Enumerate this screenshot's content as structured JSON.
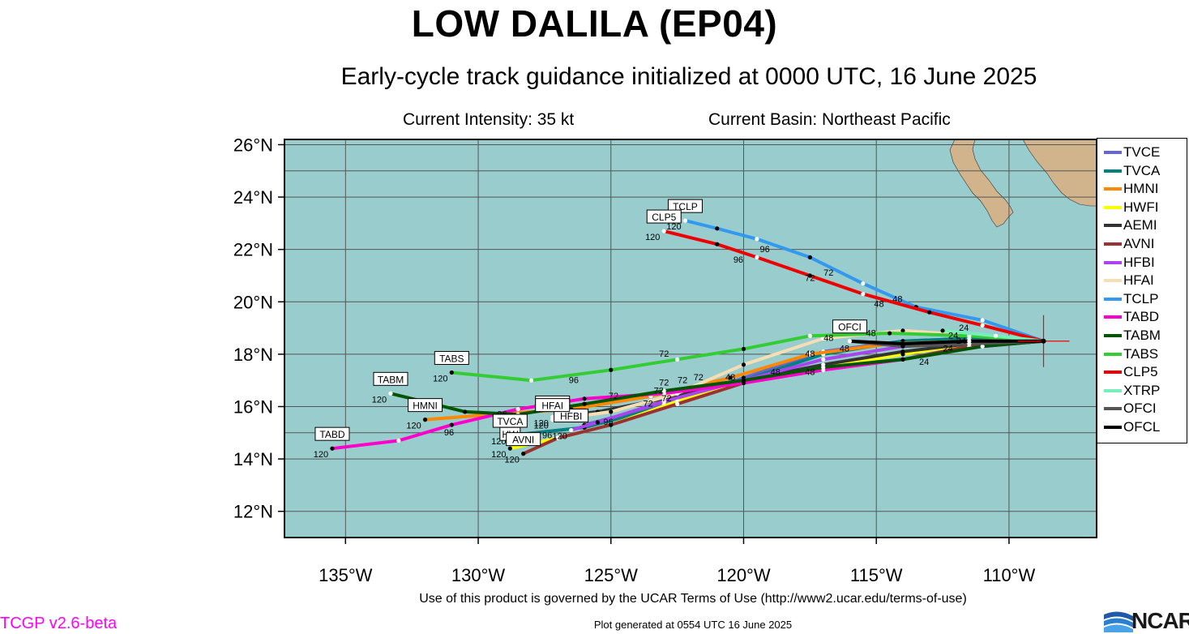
{
  "header": {
    "title": "LOW DALILA (EP04)",
    "subtitle": "Early-cycle track guidance initialized at 0000 UTC, 16 June 2025",
    "intensity": "Current Intensity: 35 kt",
    "basin": "Current Basin: Northeast Pacific"
  },
  "map": {
    "lon_range": [
      -137.3,
      -106.7
    ],
    "lat_range": [
      11.0,
      26.2
    ],
    "lat_ticks": [
      "12°N",
      "14°N",
      "16°N",
      "18°N",
      "20°N",
      "22°N",
      "24°N",
      "26°N"
    ],
    "lat_tick_values": [
      12,
      14,
      16,
      18,
      20,
      22,
      24,
      26
    ],
    "lon_ticks": [
      "135°W",
      "130°W",
      "125°W",
      "120°W",
      "115°W",
      "110°W"
    ],
    "lon_tick_values": [
      -135,
      -130,
      -125,
      -120,
      -115,
      -110
    ],
    "ocean_color": "#99cccc",
    "land_color": "#d2b48c",
    "grid": true,
    "storm_position": {
      "lat": 18.5,
      "lon": -108.7,
      "marker_color": "#ff0000"
    }
  },
  "tracks": [
    {
      "name": "TVCE",
      "color": "#6666cc",
      "tag": "",
      "points": [
        [
          -108.7,
          18.5
        ],
        [
          -111.5,
          18.6
        ],
        [
          -114.0,
          18.5
        ],
        [
          -117.0,
          18.1
        ],
        [
          -120.0,
          17.1
        ],
        [
          -123.0,
          16.1
        ],
        [
          -126.0,
          15.3
        ]
      ]
    },
    {
      "name": "TVCA",
      "color": "#008080",
      "tag": "TVCA",
      "end_label": "120",
      "points": [
        [
          -108.7,
          18.5
        ],
        [
          -111.5,
          18.6
        ],
        [
          -114.0,
          18.5
        ],
        [
          -117.0,
          18.0
        ],
        [
          -120.0,
          17.0
        ],
        [
          -123.0,
          16.0
        ],
        [
          -126.0,
          15.2
        ],
        [
          -128.8,
          14.9
        ]
      ]
    },
    {
      "name": "HMNI",
      "color": "#ff8800",
      "tag": "HMNI",
      "end_label": "120",
      "points": [
        [
          -108.7,
          18.5
        ],
        [
          -111.5,
          18.5
        ],
        [
          -114.5,
          18.4
        ],
        [
          -117.5,
          18.0
        ],
        [
          -120.5,
          17.1
        ],
        [
          -123.5,
          16.4
        ],
        [
          -126.5,
          15.9
        ],
        [
          -129.5,
          15.7
        ],
        [
          -132.0,
          15.5
        ]
      ]
    },
    {
      "name": "HWFI",
      "color": "#ffff00",
      "tag": "HW",
      "end_label": "120",
      "points": [
        [
          -108.7,
          18.5
        ],
        [
          -111.5,
          18.4
        ],
        [
          -114.0,
          18.0
        ],
        [
          -117.0,
          17.5
        ],
        [
          -120.0,
          16.9
        ],
        [
          -122.5,
          16.2
        ],
        [
          -125.0,
          15.3
        ],
        [
          -127.0,
          14.8
        ],
        [
          -128.8,
          14.4
        ]
      ]
    },
    {
      "name": "AEMI",
      "color": "#333333",
      "tag": "AEMI",
      "end_label": "120",
      "points": [
        [
          -108.7,
          18.5
        ],
        [
          -111.5,
          18.4
        ],
        [
          -114.0,
          18.1
        ],
        [
          -117.0,
          17.6
        ],
        [
          -120.0,
          17.0
        ],
        [
          -123.0,
          16.3
        ],
        [
          -125.5,
          15.8
        ],
        [
          -127.2,
          15.6
        ]
      ]
    },
    {
      "name": "AVNI",
      "color": "#993333",
      "tag": "AVNI",
      "end_label": "120",
      "points": [
        [
          -108.7,
          18.5
        ],
        [
          -111.5,
          18.3
        ],
        [
          -114.0,
          17.8
        ],
        [
          -117.0,
          17.4
        ],
        [
          -120.0,
          16.9
        ],
        [
          -122.5,
          16.1
        ],
        [
          -125.0,
          15.3
        ],
        [
          -127.0,
          14.8
        ],
        [
          -128.3,
          14.2
        ]
      ]
    },
    {
      "name": "HFBI",
      "color": "#aa44ee",
      "tag": "HFBI",
      "end_label": "120",
      "points": [
        [
          -108.7,
          18.5
        ],
        [
          -111.5,
          18.5
        ],
        [
          -114.0,
          18.3
        ],
        [
          -117.0,
          17.8
        ],
        [
          -120.0,
          17.0
        ],
        [
          -123.0,
          16.2
        ],
        [
          -125.5,
          15.4
        ],
        [
          -126.5,
          15.1
        ]
      ]
    },
    {
      "name": "HFAI",
      "color": "#f5deb3",
      "tag": "HFAI",
      "end_label": "120",
      "points": [
        [
          -108.7,
          18.5
        ],
        [
          -111.0,
          18.7
        ],
        [
          -114.0,
          18.9
        ],
        [
          -117.0,
          18.6
        ],
        [
          -120.0,
          17.6
        ],
        [
          -122.5,
          16.5
        ],
        [
          -125.0,
          15.8
        ],
        [
          -127.2,
          15.5
        ]
      ]
    },
    {
      "name": "TCLP",
      "color": "#3399ee",
      "tag": "TCLP",
      "end_label": "120",
      "points": [
        [
          -108.7,
          18.5
        ],
        [
          -111.0,
          19.3
        ],
        [
          -113.5,
          19.8
        ],
        [
          -115.5,
          20.7
        ],
        [
          -117.5,
          21.7
        ],
        [
          -119.5,
          22.4
        ],
        [
          -121.0,
          22.8
        ],
        [
          -122.2,
          23.1
        ]
      ]
    },
    {
      "name": "TABD",
      "color": "#ff00cc",
      "tag": "TABD",
      "end_label": "120",
      "points": [
        [
          -108.7,
          18.5
        ],
        [
          -111.0,
          18.3
        ],
        [
          -114.0,
          17.8
        ],
        [
          -117.0,
          17.4
        ],
        [
          -120.0,
          16.9
        ],
        [
          -123.0,
          16.5
        ],
        [
          -126.0,
          16.3
        ],
        [
          -128.5,
          15.9
        ],
        [
          -131.0,
          15.3
        ],
        [
          -133.0,
          14.7
        ],
        [
          -135.5,
          14.4
        ]
      ]
    },
    {
      "name": "TABM",
      "color": "#005500",
      "tag": "TABM",
      "end_label": "120",
      "points": [
        [
          -108.7,
          18.5
        ],
        [
          -111.0,
          18.3
        ],
        [
          -114.0,
          17.8
        ],
        [
          -117.0,
          17.5
        ],
        [
          -120.0,
          17.0
        ],
        [
          -123.0,
          16.6
        ],
        [
          -126.0,
          16.1
        ],
        [
          -128.5,
          15.7
        ],
        [
          -130.5,
          15.8
        ],
        [
          -133.3,
          16.5
        ]
      ]
    },
    {
      "name": "TABS",
      "color": "#33cc33",
      "tag": "TABS",
      "end_label": "120",
      "points": [
        [
          -108.7,
          18.5
        ],
        [
          -111.5,
          18.7
        ],
        [
          -114.5,
          18.8
        ],
        [
          -117.5,
          18.7
        ],
        [
          -120.0,
          18.2
        ],
        [
          -122.5,
          17.8
        ],
        [
          -125.0,
          17.4
        ],
        [
          -128.0,
          17.0
        ],
        [
          -131.0,
          17.3
        ]
      ]
    },
    {
      "name": "CLP5",
      "color": "#ee0000",
      "tag": "CLP5",
      "end_label": "120",
      "points": [
        [
          -108.7,
          18.5
        ],
        [
          -111.0,
          19.1
        ],
        [
          -113.0,
          19.6
        ],
        [
          -115.5,
          20.3
        ],
        [
          -117.5,
          21.0
        ],
        [
          -119.5,
          21.7
        ],
        [
          -121.0,
          22.2
        ],
        [
          -123.0,
          22.7
        ]
      ]
    },
    {
      "name": "XTRP",
      "color": "#77eebb",
      "tag": "",
      "points": [
        [
          -108.7,
          18.5
        ],
        [
          -110.5,
          18.7
        ],
        [
          -112.5,
          18.9
        ]
      ]
    },
    {
      "name": "OFCI",
      "color": "#555555",
      "tag": "OFCI",
      "points": [
        [
          -108.7,
          18.5
        ],
        [
          -111.5,
          18.4
        ],
        [
          -114.0,
          18.3
        ],
        [
          -116.0,
          18.5
        ]
      ]
    },
    {
      "name": "OFCL",
      "color": "#000000",
      "tag": "",
      "points": [
        [
          -108.7,
          18.5
        ],
        [
          -111.5,
          18.5
        ],
        [
          -114.0,
          18.4
        ],
        [
          -116.0,
          18.5
        ]
      ]
    }
  ],
  "hour_labels": [
    {
      "text": "96",
      "lon": -119.2,
      "lat": 21.9
    },
    {
      "text": "96",
      "lon": -120.2,
      "lat": 21.5
    },
    {
      "text": "72",
      "lon": -116.8,
      "lat": 21.0
    },
    {
      "text": "72",
      "lon": -117.5,
      "lat": 20.8
    },
    {
      "text": "48",
      "lon": -114.2,
      "lat": 20.0
    },
    {
      "text": "48",
      "lon": -114.9,
      "lat": 19.8
    },
    {
      "text": "72",
      "lon": -123.0,
      "lat": 17.9
    },
    {
      "text": "96",
      "lon": -126.4,
      "lat": 16.9
    },
    {
      "text": "96",
      "lon": -129.1,
      "lat": 15.6
    },
    {
      "text": "96",
      "lon": -131.1,
      "lat": 14.9
    },
    {
      "text": "72",
      "lon": -124.9,
      "lat": 16.3
    },
    {
      "text": "72",
      "lon": -123.2,
      "lat": 16.5
    },
    {
      "text": "72",
      "lon": -123.6,
      "lat": 16.0
    },
    {
      "text": "72",
      "lon": -122.9,
      "lat": 16.2
    },
    {
      "text": "72",
      "lon": -122.3,
      "lat": 16.9
    },
    {
      "text": "72",
      "lon": -121.7,
      "lat": 17.0
    },
    {
      "text": "72",
      "lon": -123.0,
      "lat": 16.8
    },
    {
      "text": "96",
      "lon": -125.1,
      "lat": 15.3
    },
    {
      "text": "96",
      "lon": -127.4,
      "lat": 14.8
    },
    {
      "text": "48",
      "lon": -120.5,
      "lat": 17.0
    },
    {
      "text": "48",
      "lon": -118.8,
      "lat": 17.2
    },
    {
      "text": "48",
      "lon": -117.5,
      "lat": 17.2
    },
    {
      "text": "48",
      "lon": -116.8,
      "lat": 18.5
    },
    {
      "text": "48",
      "lon": -117.5,
      "lat": 17.9
    },
    {
      "text": "48",
      "lon": -116.2,
      "lat": 18.1
    },
    {
      "text": "48",
      "lon": -115.2,
      "lat": 18.7
    },
    {
      "text": "24",
      "lon": -113.2,
      "lat": 17.6
    },
    {
      "text": "24",
      "lon": -112.3,
      "lat": 18.1
    },
    {
      "text": "24",
      "lon": -111.7,
      "lat": 18.9
    },
    {
      "text": "24",
      "lon": -112.1,
      "lat": 18.6
    },
    {
      "text": "24",
      "lon": -111.8,
      "lat": 18.4
    }
  ],
  "legend": [
    "TVCE",
    "TVCA",
    "HMNI",
    "HWFI",
    "AEMI",
    "AVNI",
    "HFBI",
    "HFAI",
    "TCLP",
    "TABD",
    "TABM",
    "TABS",
    "CLP5",
    "XTRP",
    "OFCI",
    "OFCL"
  ],
  "footer": {
    "terms": "Use of this product is governed by the UCAR Terms of Use (http://www2.ucar.edu/terms-of-use)",
    "generated": "Plot generated at 0554 UTC   16 June 2025",
    "version": "TCGP v2.6-beta",
    "logo": "NCAR"
  }
}
